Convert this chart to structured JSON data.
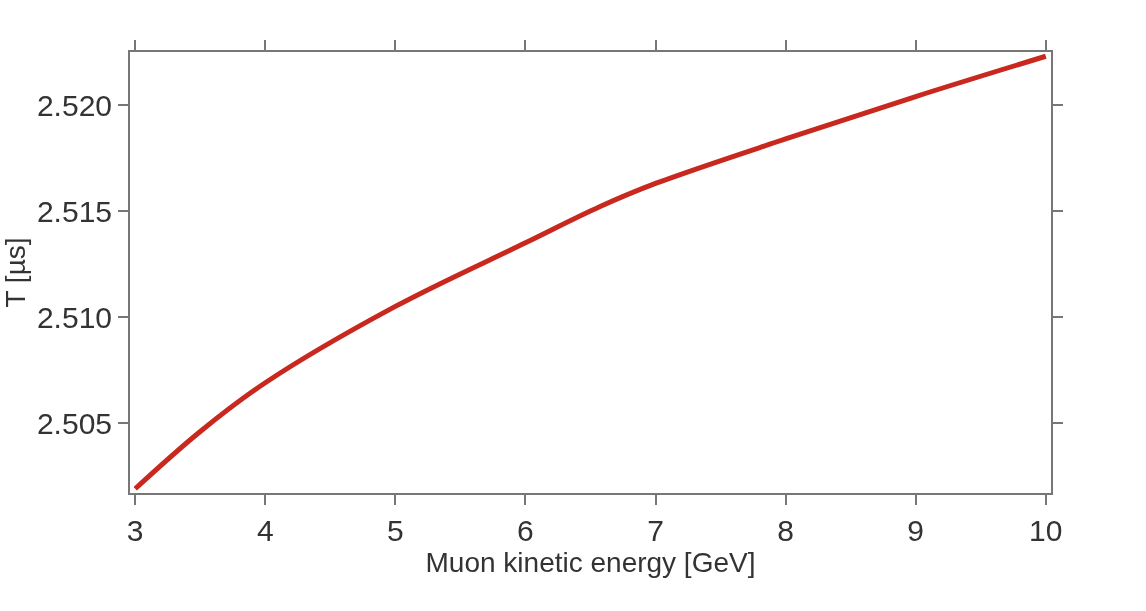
{
  "chart_data": {
    "type": "line",
    "xlabel": "Muon kinetic energy [GeV]",
    "ylabel": "T [µs]",
    "x": [
      3,
      3.5,
      4,
      5,
      6,
      6.57,
      7,
      8,
      9,
      10
    ],
    "series": [
      {
        "color": "#c8281e",
        "values": [
          2.5019,
          2.5046,
          2.5069,
          2.5105,
          2.5135,
          2.5152,
          2.5163,
          2.5184,
          2.5204,
          2.5223
        ]
      }
    ],
    "xlim": [
      2.96,
      10.04
    ],
    "ylim": [
      2.5017,
      2.5225
    ],
    "xticks": [
      3,
      4,
      5,
      6,
      7,
      8,
      9,
      10
    ],
    "yticks": [
      {
        "value": 2.505,
        "label": "2.505"
      },
      {
        "value": 2.51,
        "label": "2.510"
      },
      {
        "value": 2.515,
        "label": "2.515"
      },
      {
        "value": 2.52,
        "label": "2.520"
      }
    ],
    "marker": "none",
    "line_style": "solid"
  }
}
